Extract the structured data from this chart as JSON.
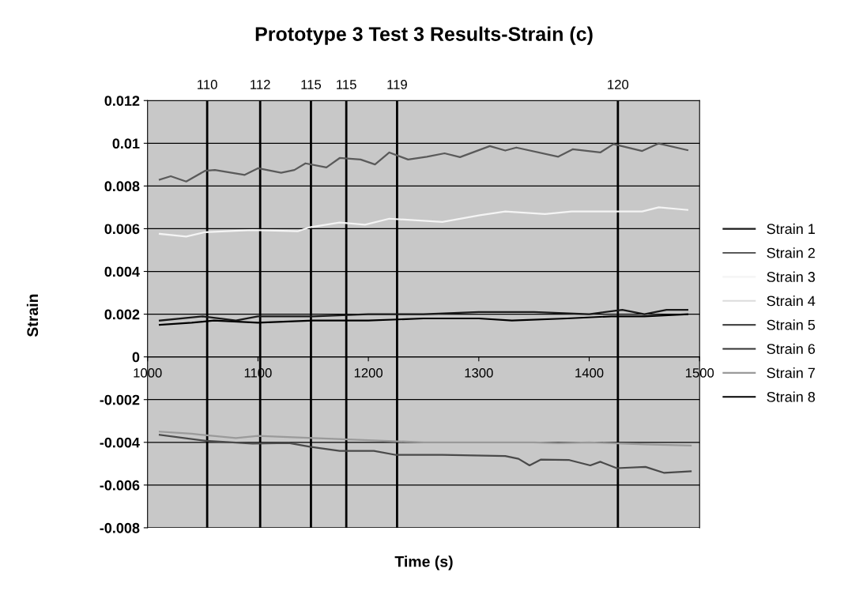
{
  "chart_data": {
    "type": "line",
    "title": "Prototype 3 Test 3 Results-Strain (c)",
    "xlabel": "Time (s)",
    "ylabel": "Strain",
    "xlim": [
      1000,
      1500
    ],
    "xticks": [
      1000,
      1100,
      1200,
      1300,
      1400,
      1500
    ],
    "ylim": [
      -0.008,
      0.012
    ],
    "yticks": [
      -0.008,
      -0.006,
      -0.004,
      -0.002,
      0,
      0.002,
      0.004,
      0.006,
      0.008,
      0.01,
      0.012
    ],
    "grid": "y",
    "legend": "right",
    "marker": "none",
    "line_style": "solid",
    "series": [
      {
        "name": "Strain 1",
        "color": "#1a1a1a",
        "x": [
          1011,
          1050,
          1080,
          1100,
          1150,
          1200,
          1250,
          1300,
          1350,
          1400,
          1430,
          1450,
          1470,
          1489
        ],
        "values": [
          0.0017,
          0.0019,
          0.0017,
          0.0019,
          0.0019,
          0.002,
          0.002,
          0.0021,
          0.0021,
          0.002,
          0.0022,
          0.002,
          0.0022,
          0.0022
        ]
      },
      {
        "name": "Strain 2",
        "color": "#5a5a5a",
        "x": [
          1011,
          1021,
          1035,
          1052,
          1061,
          1088,
          1100,
          1121,
          1133,
          1143,
          1162,
          1174,
          1193,
          1206,
          1219,
          1236,
          1253,
          1269,
          1283,
          1310,
          1324,
          1334,
          1372,
          1385,
          1410,
          1422,
          1448,
          1463,
          1489
        ],
        "values": [
          0.0083,
          0.00846,
          0.00821,
          0.00871,
          0.00875,
          0.00852,
          0.00883,
          0.00862,
          0.00875,
          0.00906,
          0.00887,
          0.00931,
          0.00924,
          0.00901,
          0.00957,
          0.00924,
          0.00937,
          0.00953,
          0.00935,
          0.00987,
          0.00966,
          0.0098,
          0.00937,
          0.00972,
          0.00957,
          0.00996,
          0.00964,
          0.00999,
          0.00968
        ]
      },
      {
        "name": "Strain 3",
        "color": "#f4f4f4",
        "x": [
          1011,
          1035,
          1052,
          1095,
          1136,
          1147,
          1174,
          1197,
          1219,
          1267,
          1301,
          1324,
          1360,
          1384,
          1420,
          1448,
          1463,
          1489
        ],
        "values": [
          0.00576,
          0.00563,
          0.00584,
          0.00594,
          0.00588,
          0.00607,
          0.00629,
          0.00619,
          0.00647,
          0.00632,
          0.00663,
          0.00681,
          0.00669,
          0.00681,
          0.00681,
          0.00681,
          0.007,
          0.00688
        ]
      },
      {
        "name": "Strain 4",
        "color": "#dcdcdc"
      },
      {
        "name": "Strain 5",
        "color": "#4a4a4a",
        "x": [
          1011,
          1053,
          1095,
          1128,
          1147,
          1174,
          1205,
          1225,
          1267,
          1324,
          1336,
          1346,
          1356,
          1382,
          1401,
          1410,
          1425,
          1451,
          1468,
          1492
        ],
        "values": [
          -0.00365,
          -0.00393,
          -0.00406,
          -0.00403,
          -0.00421,
          -0.0044,
          -0.0044,
          -0.00459,
          -0.00459,
          -0.00464,
          -0.00477,
          -0.00508,
          -0.00481,
          -0.00483,
          -0.00508,
          -0.00491,
          -0.00521,
          -0.00515,
          -0.00543,
          -0.00536
        ]
      },
      {
        "name": "Strain 6",
        "color": "#333333"
      },
      {
        "name": "Strain 7",
        "color": "#9a9a9a",
        "x": [
          1011,
          1040,
          1080,
          1100,
          1150,
          1200,
          1250,
          1300,
          1350,
          1372,
          1400,
          1450,
          1492
        ],
        "values": [
          -0.0035,
          -0.0036,
          -0.0038,
          -0.0037,
          -0.0038,
          -0.0039,
          -0.004,
          -0.004,
          -0.004,
          -0.00404,
          -0.004,
          -0.0041,
          -0.00415
        ]
      },
      {
        "name": "Strain 8",
        "color": "#000000",
        "x": [
          1011,
          1040,
          1060,
          1100,
          1150,
          1200,
          1250,
          1300,
          1330,
          1380,
          1420,
          1450,
          1489
        ],
        "values": [
          0.0015,
          0.0016,
          0.0017,
          0.0016,
          0.0017,
          0.0017,
          0.0018,
          0.0018,
          0.0017,
          0.0018,
          0.0019,
          0.0019,
          0.002
        ]
      }
    ],
    "ref_lines": [
      {
        "axis": "x",
        "value": 1054,
        "color": "#000000"
      },
      {
        "axis": "x",
        "value": 1102,
        "color": "#000000"
      },
      {
        "axis": "x",
        "value": 1148,
        "color": "#000000"
      },
      {
        "axis": "x",
        "value": 1180,
        "color": "#000000"
      },
      {
        "axis": "x",
        "value": 1226,
        "color": "#000000"
      },
      {
        "axis": "x",
        "value": 1426,
        "color": "#000000"
      }
    ],
    "annotations": [
      {
        "text": "110",
        "x": 1054,
        "y": 0.012
      },
      {
        "text": "112",
        "x": 1102,
        "y": 0.012
      },
      {
        "text": "115",
        "x": 1148,
        "y": 0.012
      },
      {
        "text": "115",
        "x": 1180,
        "y": 0.012
      },
      {
        "text": "119",
        "x": 1226,
        "y": 0.012
      },
      {
        "text": "120",
        "x": 1426,
        "y": 0.012
      }
    ]
  }
}
